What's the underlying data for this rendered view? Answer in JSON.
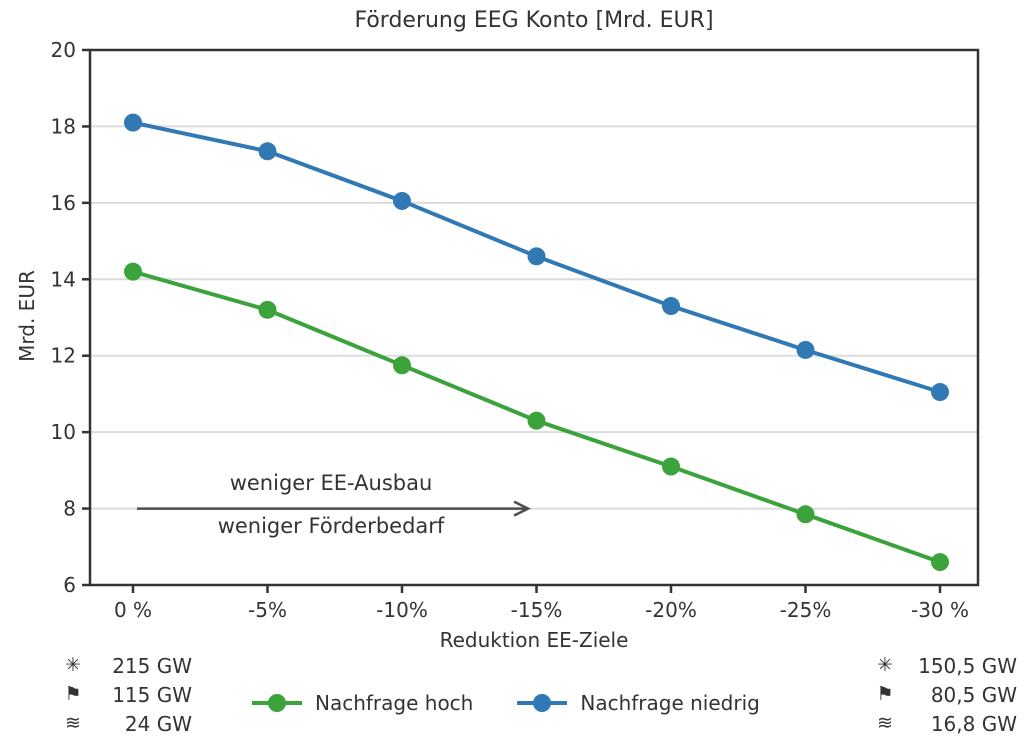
{
  "chart_data": {
    "type": "line",
    "title": "Förderung EEG Konto [Mrd. EUR]",
    "xlabel": "Reduktion EE-Ziele",
    "ylabel": "Mrd. EUR",
    "categories": [
      "0 %",
      "-5%",
      "-10%",
      "-15%",
      "-20%",
      "-25%",
      "-30 %"
    ],
    "ylim": [
      6,
      20
    ],
    "yticks": [
      6,
      8,
      10,
      12,
      14,
      16,
      18,
      20
    ],
    "grid": "horizontal light-gray gridlines at labeled y ticks",
    "legend_position": "bottom center, outside plot area",
    "series": [
      {
        "name": "Nachfrage hoch",
        "color": "#3CA33C",
        "marker": "circle",
        "values": [
          14.2,
          13.2,
          11.75,
          10.3,
          9.1,
          7.85,
          6.6
        ]
      },
      {
        "name": "Nachfrage niedrig",
        "color": "#3179B4",
        "marker": "circle",
        "values": [
          18.1,
          17.35,
          16.05,
          14.6,
          13.3,
          12.15,
          11.05
        ]
      }
    ],
    "annotation": {
      "text_above_arrow": "weniger EE-Ausbau",
      "text_below_arrow": "weniger Förderbedarf",
      "arrow_direction": "right",
      "arrow_y_value": 8
    }
  },
  "capacity_stats": {
    "left": [
      {
        "icon": "sun-icon",
        "glyph": "✳",
        "value": "215 GW"
      },
      {
        "icon": "flag-icon",
        "glyph": "⚑",
        "value": "115 GW"
      },
      {
        "icon": "waves-icon",
        "glyph": "≋",
        "value": "24 GW"
      }
    ],
    "right": [
      {
        "icon": "sun-icon",
        "glyph": "✳",
        "value": "150,5 GW"
      },
      {
        "icon": "flag-icon",
        "glyph": "⚑",
        "value": "80,5 GW"
      },
      {
        "icon": "waves-icon",
        "glyph": "≋",
        "value": "16,8 GW"
      }
    ]
  },
  "colors": {
    "text": "#333333",
    "axis": "#333333",
    "grid": "#dcdcdc",
    "arrow": "#4d4d4d",
    "green": "#3CA33C",
    "blue": "#3179B4",
    "background": "#ffffff"
  }
}
